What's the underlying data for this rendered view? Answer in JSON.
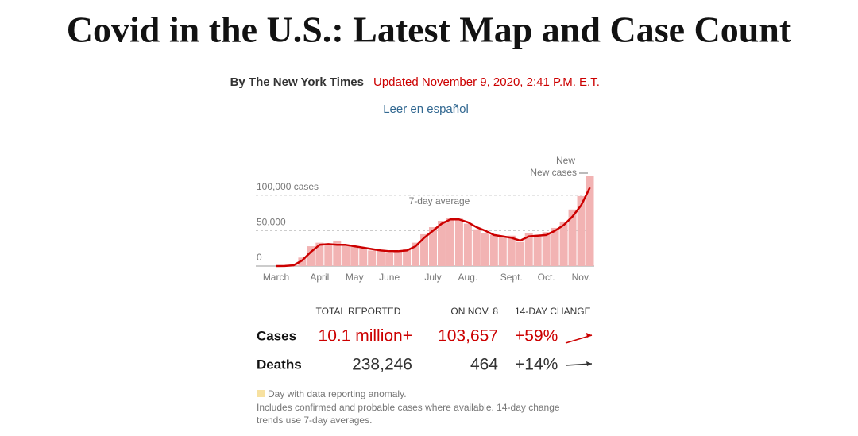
{
  "header": {
    "title": "Covid in the U.S.: Latest Map and Case Count",
    "byline": "By The New York Times",
    "updated": "Updated November 9, 2020, 2:41 P.M. E.T.",
    "link": "Leer en español"
  },
  "chart_data": {
    "type": "bar",
    "categories": [
      "March",
      null,
      null,
      null,
      null,
      "April",
      null,
      null,
      null,
      "May",
      null,
      null,
      null,
      "June",
      null,
      null,
      null,
      null,
      "July",
      null,
      null,
      null,
      "Aug.",
      null,
      null,
      null,
      null,
      "Sept.",
      null,
      null,
      null,
      "Oct.",
      null,
      null,
      null,
      "Nov.",
      null
    ],
    "series": [
      {
        "name": "New cases",
        "color": "#f2b3b3",
        "values": [
          0,
          200,
          3000,
          12000,
          28000,
          33000,
          32000,
          36000,
          29000,
          27000,
          25000,
          22000,
          23000,
          19000,
          21000,
          24000,
          33000,
          45000,
          55000,
          64000,
          68000,
          67000,
          60000,
          52000,
          47000,
          44000,
          42000,
          43000,
          34000,
          47000,
          44000,
          48000,
          54000,
          63000,
          80000,
          99000,
          128000
        ]
      },
      {
        "name": "7-day average",
        "type": "line",
        "color": "#cc0000",
        "values": [
          0,
          100,
          1000,
          8000,
          20000,
          30000,
          31000,
          30000,
          30000,
          28000,
          26000,
          24000,
          22000,
          21000,
          21000,
          22000,
          28000,
          40000,
          50000,
          60000,
          66000,
          66000,
          62000,
          55000,
          50000,
          44000,
          42000,
          40000,
          36000,
          42000,
          43000,
          44000,
          50000,
          58000,
          70000,
          86000,
          111000
        ]
      }
    ],
    "ylim": [
      0,
      130000
    ],
    "yticks": [
      0,
      {
        "value": 50000,
        "label": "50,000"
      },
      {
        "value": 100000,
        "label": "100,000 cases"
      }
    ],
    "grid": true
  },
  "table": {
    "columns": [
      "TOTAL REPORTED",
      "ON NOV. 8",
      "14-DAY CHANGE"
    ],
    "rows": [
      [
        "Cases",
        "10.1 million+",
        "103,657",
        "+59%"
      ],
      [
        "Deaths",
        "238,246",
        "464",
        "+14%"
      ]
    ]
  },
  "notes": {
    "anomaly": "Day with data reporting anomaly.",
    "source": "Includes confirmed and probable cases where available. 14-day change trends use 7-day averages."
  }
}
